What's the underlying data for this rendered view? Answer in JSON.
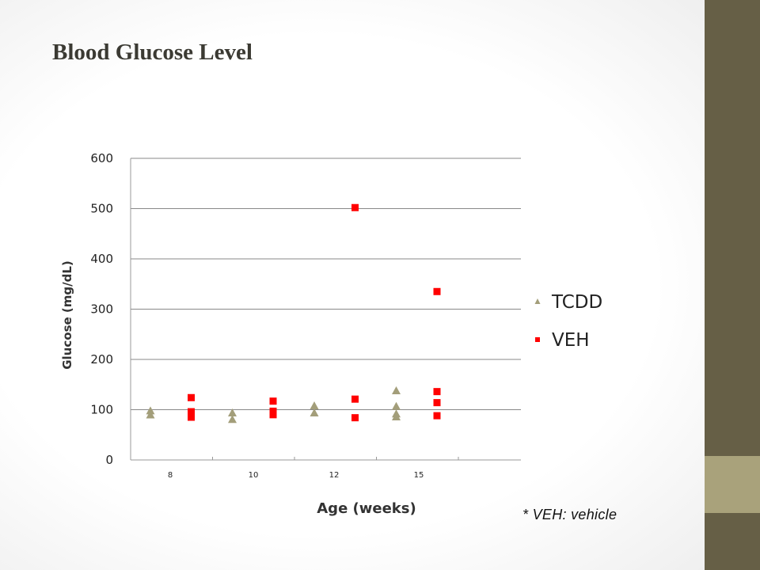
{
  "slide": {
    "title": "Blood Glucose Level",
    "footnote": "* VEH: vehicle"
  },
  "colors": {
    "tcdd": "#a39e7a",
    "veh": "#ff0000",
    "gridline": "#888888",
    "sidebar": "#665f46",
    "sidebar_accent": "#a9a27b"
  },
  "chart_data": {
    "type": "scatter",
    "xlabel": "Age (weeks)",
    "ylabel": "Glucose  (mg/dL)",
    "ylim": [
      0,
      600
    ],
    "yticks": [
      0,
      100,
      200,
      300,
      400,
      500,
      600
    ],
    "categories": [
      "8",
      "10",
      "12",
      "15"
    ],
    "grid": "horizontal",
    "legend_position": "right",
    "series": [
      {
        "name": "TCDD",
        "marker": "triangle",
        "points": [
          {
            "x": "8",
            "y": 97
          },
          {
            "x": "8",
            "y": 89
          },
          {
            "x": "10",
            "y": 93
          },
          {
            "x": "10",
            "y": 80
          },
          {
            "x": "12",
            "y": 107
          },
          {
            "x": "12",
            "y": 93
          },
          {
            "x": "15",
            "y": 137
          },
          {
            "x": "15",
            "y": 106
          },
          {
            "x": "15",
            "y": 91
          },
          {
            "x": "15",
            "y": 85
          }
        ]
      },
      {
        "name": "VEH",
        "marker": "square",
        "points": [
          {
            "x": "8",
            "y": 124
          },
          {
            "x": "8",
            "y": 96
          },
          {
            "x": "8",
            "y": 85
          },
          {
            "x": "10",
            "y": 117
          },
          {
            "x": "10",
            "y": 97
          },
          {
            "x": "10",
            "y": 90
          },
          {
            "x": "12",
            "y": 502
          },
          {
            "x": "12",
            "y": 121
          },
          {
            "x": "12",
            "y": 84
          },
          {
            "x": "15",
            "y": 335
          },
          {
            "x": "15",
            "y": 136
          },
          {
            "x": "15",
            "y": 114
          },
          {
            "x": "15",
            "y": 88
          }
        ]
      }
    ]
  }
}
